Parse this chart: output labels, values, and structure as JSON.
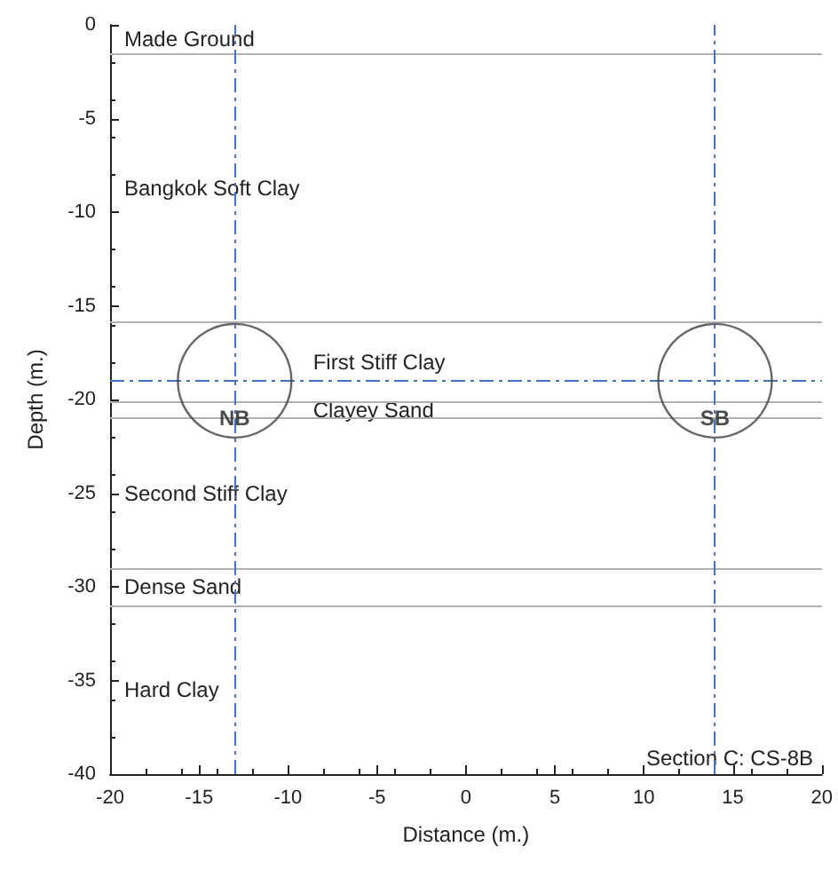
{
  "chart_data": {
    "type": "scatter",
    "xlabel": "Distance (m.)",
    "ylabel": "Depth (m.)",
    "xlim": [
      -20,
      20
    ],
    "xticks": [
      -20,
      -15,
      -10,
      -5,
      0,
      5,
      10,
      15,
      20
    ],
    "ylim": [
      -40,
      0
    ],
    "yticks": [
      -40,
      -35,
      -30,
      -25,
      -20,
      -15,
      -10,
      -5,
      0
    ],
    "grid": false,
    "legend": false,
    "marker": "circle",
    "series": [
      {
        "name": "NB",
        "color": "#404040",
        "x": [
          -13
        ],
        "values": [
          -19
        ]
      },
      {
        "name": "SB",
        "color": "#404040",
        "x": [
          14
        ],
        "values": [
          -19
        ]
      }
    ],
    "ref_lines": [
      {
        "axis": "y",
        "value": -1.5,
        "color": "#b0b0b0",
        "line_style": "solid"
      },
      {
        "axis": "y",
        "value": -15.9,
        "color": "#b0b0b0",
        "line_style": "solid"
      },
      {
        "axis": "y",
        "value": -20.1,
        "color": "#b0b0b0",
        "line_style": "solid"
      },
      {
        "axis": "y",
        "value": -21,
        "color": "#b0b0b0",
        "line_style": "solid"
      },
      {
        "axis": "y",
        "value": -29,
        "color": "#b0b0b0",
        "line_style": "solid"
      },
      {
        "axis": "y",
        "value": -31,
        "color": "#b0b0b0",
        "line_style": "solid"
      },
      {
        "axis": "x",
        "value": -13,
        "color": "#4472c4",
        "line_style": "dashed"
      },
      {
        "axis": "x",
        "value": 14,
        "color": "#4472c4",
        "line_style": "dashed"
      },
      {
        "axis": "y",
        "value": -19,
        "color": "#4472c4",
        "line_style": "dashed"
      }
    ],
    "annotations": [
      "Made Ground",
      "Bangkok Soft Clay",
      "First Stiff Clay",
      "Clayey Sand",
      "Second Stiff Clay",
      "Dense Sand",
      "Hard Clay",
      "Section C: CS-8B"
    ]
  }
}
